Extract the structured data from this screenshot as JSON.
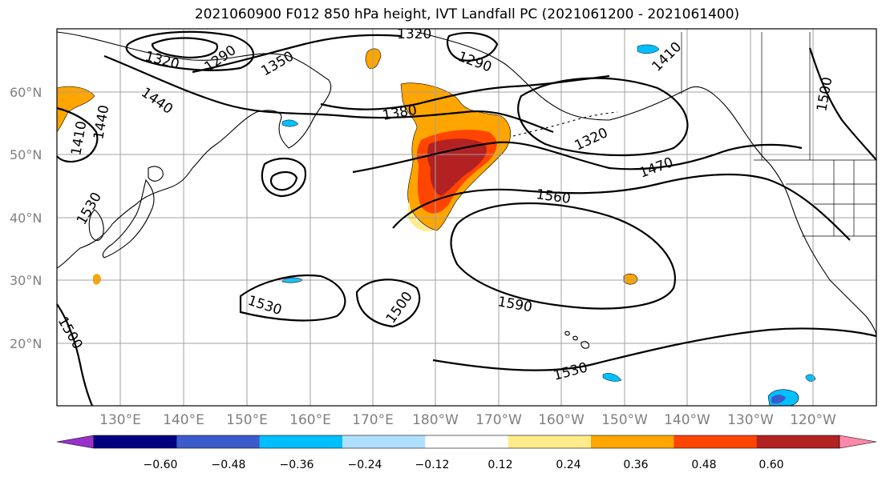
{
  "title": "2021060900 F012 850 hPa height, IVT Landfall PC (2021061200 - 2021061400)",
  "lat_labels": [
    "60°N",
    "50°N",
    "40°N",
    "30°N",
    "20°N"
  ],
  "lon_labels": [
    "130°E",
    "140°E",
    "150°E",
    "160°E",
    "170°E",
    "180°W",
    "170°W",
    "160°W",
    "150°W",
    "140°W",
    "130°W",
    "120°W"
  ],
  "contour_labels": [
    "1320",
    "1290",
    "1350",
    "1320",
    "1290",
    "1410",
    "1440",
    "1380",
    "1440",
    "1410",
    "1320",
    "1470",
    "1560",
    "1530",
    "1500",
    "1530",
    "1500",
    "1590",
    "1530",
    "1500"
  ],
  "colorbar": {
    "ticks": [
      "−0.60",
      "−0.48",
      "−0.36",
      "−0.24",
      "−0.12",
      "0.12",
      "0.24",
      "0.36",
      "0.48",
      "0.60"
    ],
    "colors": [
      "#9932cc",
      "#000080",
      "#3b5bcc",
      "#00bfff",
      "#b0e0ff",
      "#ffffff",
      "#ffeb8a",
      "#ffa500",
      "#ff4500",
      "#b22222",
      "#ff88aa"
    ]
  },
  "fill_colors": {
    "orange": "#ffa500",
    "yellow": "#ffeb8a",
    "red_orange": "#ff4500",
    "dark_red": "#b22222",
    "cyan": "#00bfff",
    "light_blue": "#b0e0ff",
    "blue": "#3b5bcc"
  }
}
